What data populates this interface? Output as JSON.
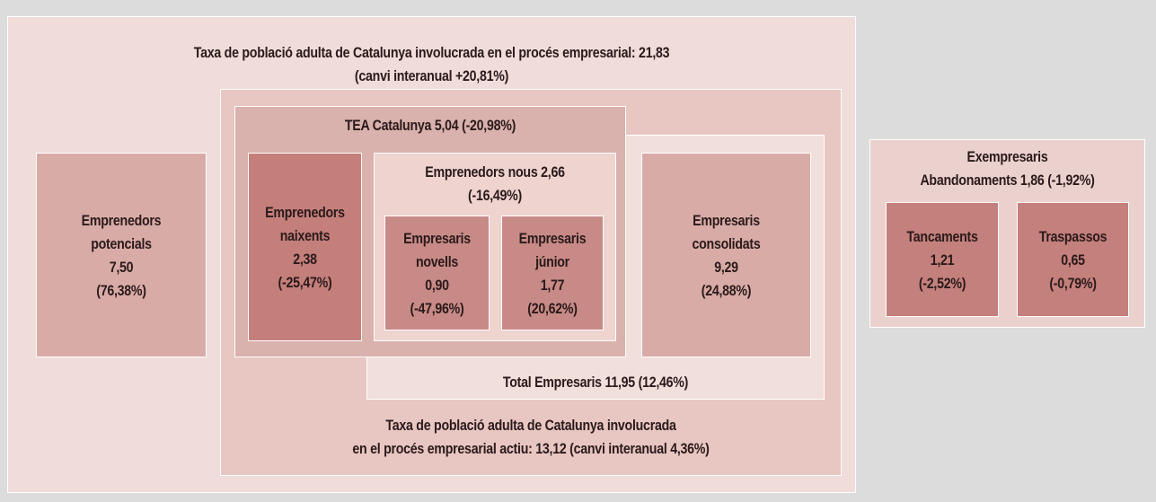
{
  "boxes": [
    {
      "lines": [
        "Taxa de població adulta de Catalunya involucrada en el procés empresarial: 21,83",
        "(canvi interanual +20,81%)"
      ]
    },
    {
      "lines": [
        "Taxa de població adulta de Catalunya involucrada",
        "en el procés empresarial actiu: 13,12 (canvi interanual 4,36%)"
      ]
    },
    {
      "lines": [
        "Total Empresaris 11,95 (12,46%)"
      ]
    },
    {
      "lines": [
        "TEA Catalunya 5,04 (-20,98%)"
      ]
    },
    {
      "lines": [
        "Emprenedors",
        "potencials",
        "7,50",
        "(76,38%)"
      ]
    },
    {
      "lines": [
        "Emprenedors",
        "naixents",
        "2,38",
        "(-25,47%)"
      ]
    },
    {
      "lines": [
        "Emprenedors nous 2,66",
        "(-16,49%)"
      ]
    },
    {
      "lines": [
        "Empresaris",
        "novells",
        "0,90",
        "(-47,96%)"
      ]
    },
    {
      "lines": [
        "Empresaris",
        "júnior",
        "1,77",
        "(20,62%)"
      ]
    },
    {
      "lines": [
        "Empresaris",
        "consolidats",
        "9,29",
        "(24,88%)"
      ]
    },
    {
      "lines": [
        "Exempresaris",
        "Abandonaments 1,86 (-1,92%)"
      ]
    },
    {
      "lines": [
        "Tancaments",
        "1,21",
        "(-2,52%)"
      ]
    },
    {
      "lines": [
        "Traspassos",
        "0,65",
        "(-0,79%)"
      ]
    }
  ]
}
